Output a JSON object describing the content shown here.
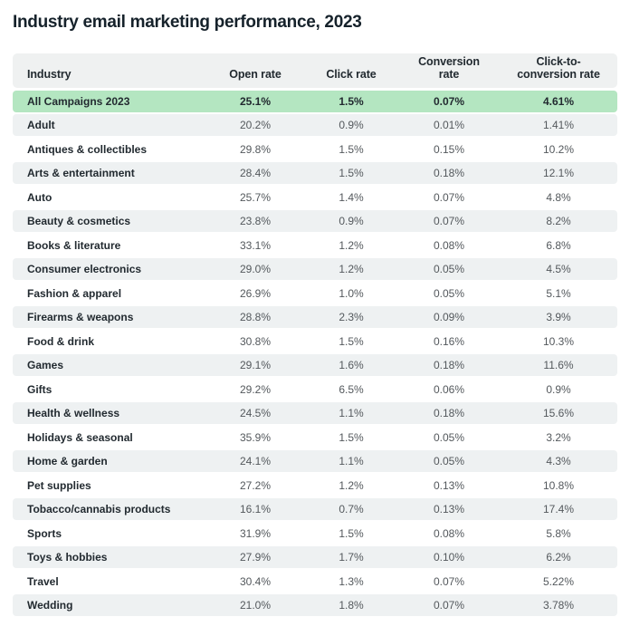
{
  "page": {
    "title": "Industry email marketing performance, 2023"
  },
  "colors": {
    "title_text": "#16222b",
    "header_bg": "#eff1f1",
    "stripe_bg": "#eef1f2",
    "highlight_bg": "#b4e6c1",
    "name_text": "#222a30",
    "value_text": "#53585c"
  },
  "chart_data": {
    "type": "table",
    "title": "Industry email marketing performance, 2023",
    "columns": [
      "Industry",
      "Open rate",
      "Click rate",
      "Conversion rate",
      "Click-to-conversion rate"
    ],
    "highlight_row_label": "All Campaigns 2023",
    "rows": [
      {
        "industry": "All Campaigns 2023",
        "open_rate": "25.1%",
        "click_rate": "1.5%",
        "conversion_rate": "0.07%",
        "click_to_conversion_rate": "4.61%"
      },
      {
        "industry": "Adult",
        "open_rate": "20.2%",
        "click_rate": "0.9%",
        "conversion_rate": "0.01%",
        "click_to_conversion_rate": "1.41%"
      },
      {
        "industry": "Antiques & collectibles",
        "open_rate": "29.8%",
        "click_rate": "1.5%",
        "conversion_rate": "0.15%",
        "click_to_conversion_rate": "10.2%"
      },
      {
        "industry": "Arts & entertainment",
        "open_rate": "28.4%",
        "click_rate": "1.5%",
        "conversion_rate": "0.18%",
        "click_to_conversion_rate": "12.1%"
      },
      {
        "industry": "Auto",
        "open_rate": "25.7%",
        "click_rate": "1.4%",
        "conversion_rate": "0.07%",
        "click_to_conversion_rate": "4.8%"
      },
      {
        "industry": "Beauty & cosmetics",
        "open_rate": "23.8%",
        "click_rate": "0.9%",
        "conversion_rate": "0.07%",
        "click_to_conversion_rate": "8.2%"
      },
      {
        "industry": "Books & literature",
        "open_rate": "33.1%",
        "click_rate": "1.2%",
        "conversion_rate": "0.08%",
        "click_to_conversion_rate": "6.8%"
      },
      {
        "industry": "Consumer electronics",
        "open_rate": "29.0%",
        "click_rate": "1.2%",
        "conversion_rate": "0.05%",
        "click_to_conversion_rate": "4.5%"
      },
      {
        "industry": "Fashion & apparel",
        "open_rate": "26.9%",
        "click_rate": "1.0%",
        "conversion_rate": "0.05%",
        "click_to_conversion_rate": "5.1%"
      },
      {
        "industry": "Firearms & weapons",
        "open_rate": "28.8%",
        "click_rate": "2.3%",
        "conversion_rate": "0.09%",
        "click_to_conversion_rate": "3.9%"
      },
      {
        "industry": "Food & drink",
        "open_rate": "30.8%",
        "click_rate": "1.5%",
        "conversion_rate": "0.16%",
        "click_to_conversion_rate": "10.3%"
      },
      {
        "industry": "Games",
        "open_rate": "29.1%",
        "click_rate": "1.6%",
        "conversion_rate": "0.18%",
        "click_to_conversion_rate": "11.6%"
      },
      {
        "industry": "Gifts",
        "open_rate": "29.2%",
        "click_rate": "6.5%",
        "conversion_rate": "0.06%",
        "click_to_conversion_rate": "0.9%"
      },
      {
        "industry": "Health & wellness",
        "open_rate": "24.5%",
        "click_rate": "1.1%",
        "conversion_rate": "0.18%",
        "click_to_conversion_rate": "15.6%"
      },
      {
        "industry": "Holidays & seasonal",
        "open_rate": "35.9%",
        "click_rate": "1.5%",
        "conversion_rate": "0.05%",
        "click_to_conversion_rate": "3.2%"
      },
      {
        "industry": "Home & garden",
        "open_rate": "24.1%",
        "click_rate": "1.1%",
        "conversion_rate": "0.05%",
        "click_to_conversion_rate": "4.3%"
      },
      {
        "industry": "Pet supplies",
        "open_rate": "27.2%",
        "click_rate": "1.2%",
        "conversion_rate": "0.13%",
        "click_to_conversion_rate": "10.8%"
      },
      {
        "industry": "Tobacco/cannabis products",
        "open_rate": "16.1%",
        "click_rate": "0.7%",
        "conversion_rate": "0.13%",
        "click_to_conversion_rate": "17.4%"
      },
      {
        "industry": "Sports",
        "open_rate": "31.9%",
        "click_rate": "1.5%",
        "conversion_rate": "0.08%",
        "click_to_conversion_rate": "5.8%"
      },
      {
        "industry": "Toys & hobbies",
        "open_rate": "27.9%",
        "click_rate": "1.7%",
        "conversion_rate": "0.10%",
        "click_to_conversion_rate": "6.2%"
      },
      {
        "industry": "Travel",
        "open_rate": "30.4%",
        "click_rate": "1.3%",
        "conversion_rate": "0.07%",
        "click_to_conversion_rate": "5.22%"
      },
      {
        "industry": "Wedding",
        "open_rate": "21.0%",
        "click_rate": "1.8%",
        "conversion_rate": "0.07%",
        "click_to_conversion_rate": "3.78%"
      }
    ]
  }
}
